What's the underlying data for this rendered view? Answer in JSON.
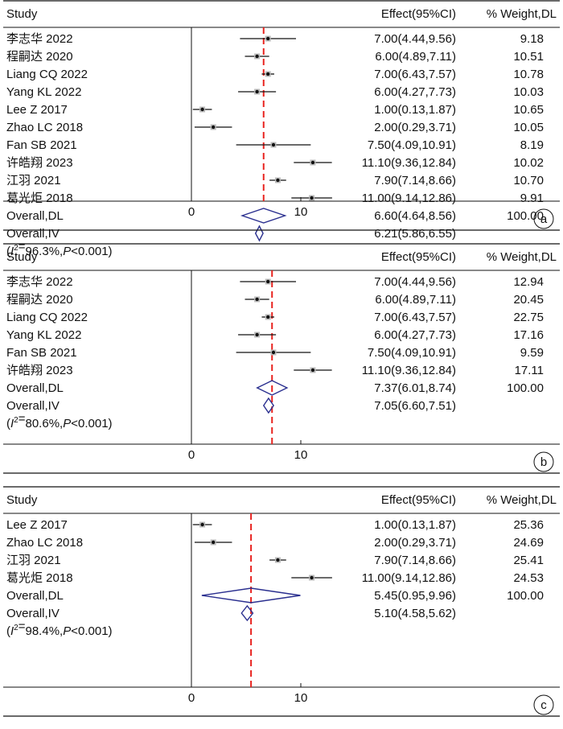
{
  "colors": {
    "ref_line": "#e8231f",
    "diamond": "#2a2f8f",
    "ink": "#111111"
  },
  "chart_data": [
    {
      "type": "forest",
      "panel_label": "a",
      "header": {
        "study": "Study",
        "effect": "Effect(95%CI)",
        "weight": "% Weight,DL"
      },
      "x_ticks": [
        0,
        10
      ],
      "xlim": [
        -0.3,
        14
      ],
      "pooled_line": 6.6,
      "studies": [
        {
          "name": "李志华 2022",
          "est": 7.0,
          "lo": 4.44,
          "hi": 9.56,
          "effect_text": "7.00(4.44,9.56)",
          "weight": "9.18"
        },
        {
          "name": "程嗣达 2020",
          "est": 6.0,
          "lo": 4.89,
          "hi": 7.11,
          "effect_text": "6.00(4.89,7.11)",
          "weight": "10.51"
        },
        {
          "name": "Liang CQ 2022",
          "est": 7.0,
          "lo": 6.43,
          "hi": 7.57,
          "effect_text": "7.00(6.43,7.57)",
          "weight": "10.78"
        },
        {
          "name": "Yang KL 2022",
          "est": 6.0,
          "lo": 4.27,
          "hi": 7.73,
          "effect_text": "6.00(4.27,7.73)",
          "weight": "10.03"
        },
        {
          "name": "Lee Z 2017",
          "est": 1.0,
          "lo": 0.13,
          "hi": 1.87,
          "effect_text": "1.00(0.13,1.87)",
          "weight": "10.65"
        },
        {
          "name": "Zhao LC 2018",
          "est": 2.0,
          "lo": 0.29,
          "hi": 3.71,
          "effect_text": "2.00(0.29,3.71)",
          "weight": "10.05"
        },
        {
          "name": "Fan SB 2021",
          "est": 7.5,
          "lo": 4.09,
          "hi": 10.91,
          "effect_text": "7.50(4.09,10.91)",
          "weight": "8.19"
        },
        {
          "name": "许皓翔 2023",
          "est": 11.1,
          "lo": 9.36,
          "hi": 12.84,
          "effect_text": "11.10(9.36,12.84)",
          "weight": "10.02"
        },
        {
          "name": "江羽 2021",
          "est": 7.9,
          "lo": 7.14,
          "hi": 8.66,
          "effect_text": "7.90(7.14,8.66)",
          "weight": "10.70"
        },
        {
          "name": "葛光炬 2018",
          "est": 11.0,
          "lo": 9.14,
          "hi": 12.86,
          "effect_text": "11.00(9.14,12.86)",
          "weight": "9.91"
        }
      ],
      "overall_dl": {
        "name": "Overall,DL",
        "est": 6.6,
        "lo": 4.64,
        "hi": 8.56,
        "effect_text": "6.60(4.64,8.56)",
        "weight": "100.00"
      },
      "overall_iv": {
        "name": "Overall,IV",
        "est": 6.21,
        "lo": 5.86,
        "hi": 6.55,
        "effect_text": "6.21(5.86,6.55)"
      },
      "heterogeneity": {
        "i2": "96.3%",
        "p": "0.001"
      }
    },
    {
      "type": "forest",
      "panel_label": "b",
      "header": {
        "study": "Study",
        "effect": "Effect(95%CI)",
        "weight": "% Weight,DL"
      },
      "x_ticks": [
        0,
        10
      ],
      "xlim": [
        -0.3,
        14
      ],
      "pooled_line": 7.37,
      "studies": [
        {
          "name": "李志华 2022",
          "est": 7.0,
          "lo": 4.44,
          "hi": 9.56,
          "effect_text": "7.00(4.44,9.56)",
          "weight": "12.94"
        },
        {
          "name": "程嗣达 2020",
          "est": 6.0,
          "lo": 4.89,
          "hi": 7.11,
          "effect_text": "6.00(4.89,7.11)",
          "weight": "20.45"
        },
        {
          "name": "Liang CQ 2022",
          "est": 7.0,
          "lo": 6.43,
          "hi": 7.57,
          "effect_text": "7.00(6.43,7.57)",
          "weight": "22.75"
        },
        {
          "name": "Yang KL 2022",
          "est": 6.0,
          "lo": 4.27,
          "hi": 7.73,
          "effect_text": "6.00(4.27,7.73)",
          "weight": "17.16"
        },
        {
          "name": "Fan SB 2021",
          "est": 7.5,
          "lo": 4.09,
          "hi": 10.91,
          "effect_text": "7.50(4.09,10.91)",
          "weight": "9.59"
        },
        {
          "name": "许皓翔 2023",
          "est": 11.1,
          "lo": 9.36,
          "hi": 12.84,
          "effect_text": "11.10(9.36,12.84)",
          "weight": "17.11"
        }
      ],
      "overall_dl": {
        "name": "Overall,DL",
        "est": 7.37,
        "lo": 6.01,
        "hi": 8.74,
        "effect_text": "7.37(6.01,8.74)",
        "weight": "100.00"
      },
      "overall_iv": {
        "name": "Overall,IV",
        "est": 7.05,
        "lo": 6.6,
        "hi": 7.51,
        "effect_text": "7.05(6.60,7.51)"
      },
      "heterogeneity": {
        "i2": "80.6%",
        "p": "0.001"
      }
    },
    {
      "type": "forest",
      "panel_label": "c",
      "header": {
        "study": "Study",
        "effect": "Effect(95%CI)",
        "weight": "% Weight,DL"
      },
      "x_ticks": [
        0,
        10
      ],
      "xlim": [
        -0.3,
        14
      ],
      "pooled_line": 5.45,
      "studies": [
        {
          "name": "Lee Z 2017",
          "est": 1.0,
          "lo": 0.13,
          "hi": 1.87,
          "effect_text": "1.00(0.13,1.87)",
          "weight": "25.36"
        },
        {
          "name": "Zhao LC 2018",
          "est": 2.0,
          "lo": 0.29,
          "hi": 3.71,
          "effect_text": "2.00(0.29,3.71)",
          "weight": "24.69"
        },
        {
          "name": "江羽 2021",
          "est": 7.9,
          "lo": 7.14,
          "hi": 8.66,
          "effect_text": "7.90(7.14,8.66)",
          "weight": "25.41"
        },
        {
          "name": "葛光炬 2018",
          "est": 11.0,
          "lo": 9.14,
          "hi": 12.86,
          "effect_text": "11.00(9.14,12.86)",
          "weight": "24.53"
        }
      ],
      "overall_dl": {
        "name": "Overall,DL",
        "est": 5.45,
        "lo": 0.95,
        "hi": 9.96,
        "effect_text": "5.45(0.95,9.96)",
        "weight": "100.00"
      },
      "overall_iv": {
        "name": "Overall,IV",
        "est": 5.1,
        "lo": 4.58,
        "hi": 5.62,
        "effect_text": "5.10(4.58,5.62)"
      },
      "heterogeneity": {
        "i2": "98.4%",
        "p": "0.001"
      }
    }
  ]
}
